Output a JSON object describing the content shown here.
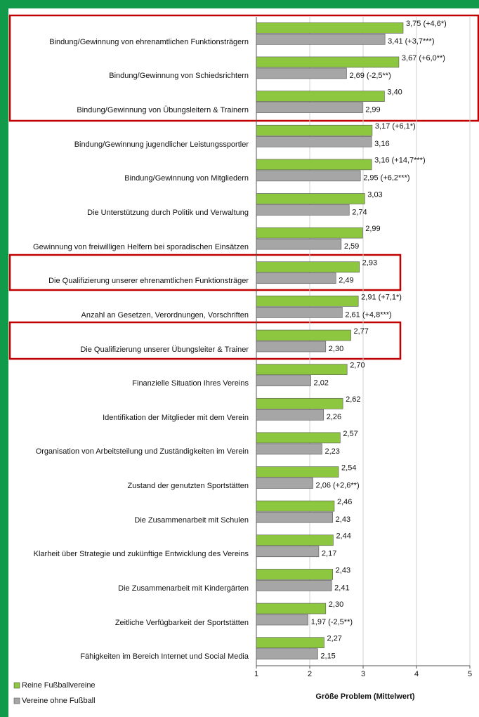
{
  "chart_data": {
    "type": "barh",
    "categories": [
      "Bindung/Gewinnung von ehrenamtlichen Funktionsträgern",
      "Bindung/Gewinnung von Schiedsrichtern",
      "Bindung/Gewinnung von Übungsleitern & Trainern",
      "Bindung/Gewinnung jugendlicher Leistungssportler",
      "Bindung/Gewinnung von Mitgliedern",
      "Die Unterstützung durch Politik und Verwaltung",
      "Gewinnung von freiwilligen Helfern bei sporadischen Einsätzen",
      "Die Qualifizierung unserer ehrenamtlichen Funktionsträger",
      "Anzahl an Gesetzen, Verordnungen, Vorschriften",
      "Die Qualifizierung unserer Übungsleiter & Trainer",
      "Finanzielle Situation Ihres Vereins",
      "Identifikation der Mitglieder mit dem Verein",
      "Organisation von Arbeitsteilung und Zuständigkeiten im Verein",
      "Zustand der genutzten Sportstätten",
      "Die Zusammenarbeit mit Schulen",
      "Klarheit über Strategie und zukünftige Entwicklung des Vereins",
      "Die Zusammenarbeit mit Kindergärten",
      "Zeitliche Verfügbarkeit der Sportstätten",
      "Fähigkeiten im Bereich Internet und Social Media"
    ],
    "series": [
      {
        "name": "Reine Fußballvereine",
        "color": "#8dc63f",
        "values": [
          3.75,
          3.67,
          3.4,
          3.17,
          3.16,
          3.03,
          2.99,
          2.93,
          2.91,
          2.77,
          2.7,
          2.62,
          2.57,
          2.54,
          2.46,
          2.44,
          2.43,
          2.3,
          2.27
        ],
        "value_labels": [
          "3,75 (+4,6*)",
          "3,67 (+6,0**)",
          "3,40",
          "3,17 (+6,1*)",
          "3,16 (+14,7***)",
          "3,03",
          "2,99",
          "2,93",
          "2,91 (+7,1*)",
          "2,77",
          "2,70",
          "2,62",
          "2,57",
          "2,54",
          "2,46",
          "2,44",
          "2,43",
          "2,30",
          "2,27"
        ]
      },
      {
        "name": "Vereine ohne Fußball",
        "color": "#a6a6a6",
        "values": [
          3.41,
          2.69,
          2.99,
          3.16,
          2.95,
          2.74,
          2.59,
          2.49,
          2.61,
          2.3,
          2.02,
          2.26,
          2.23,
          2.06,
          2.43,
          2.17,
          2.41,
          1.97,
          2.15
        ],
        "value_labels": [
          "3,41 (+3,7***)",
          "2,69 (-2,5**)",
          "2,99",
          "3,16",
          "2,95 (+6,2***)",
          "2,74",
          "2,59",
          "2,49",
          "2,61 (+4,8***)",
          "2,30",
          "2,02",
          "2,26",
          "2,23",
          "2,06 (+2,6**)",
          "2,43",
          "2,17",
          "2,41",
          "1,97 (-2,5**)",
          "2,15"
        ]
      }
    ],
    "xlabel": "Größe Problem (Mittelwert)",
    "xlim": [
      1,
      5
    ],
    "xticks": [
      1,
      2,
      3,
      4,
      5
    ],
    "grid": true
  }
}
